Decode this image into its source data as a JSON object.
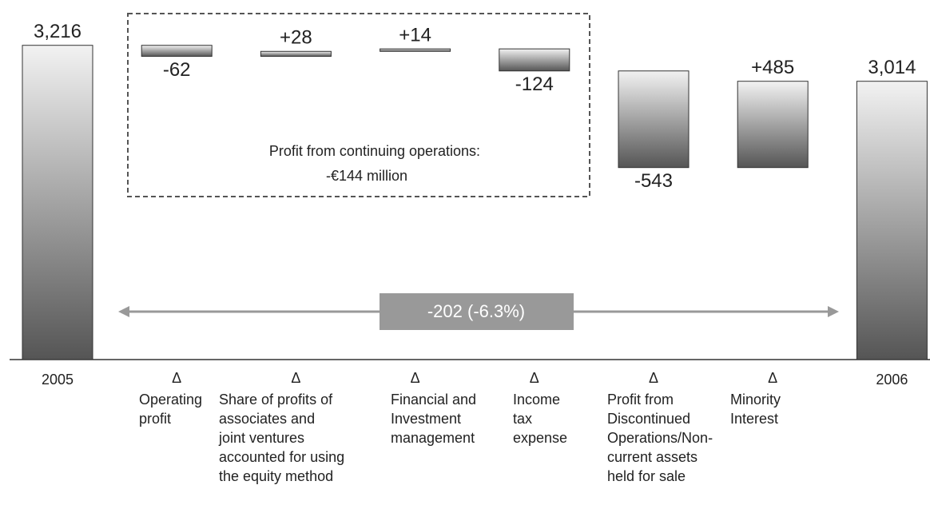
{
  "chart_data": {
    "type": "waterfall",
    "categories": [
      "2005",
      "Operating\nprofit",
      "Share of profits of\nassociates and\njoint ventures\naccounted for using\nthe equity method",
      "Financial and\nInvestment\nmanagement",
      "Income\ntax\nexpense",
      "Profit from\nDiscontinued\nOperations/Non-\ncurrent assets\nheld for sale",
      "Minority\nInterest",
      "2006"
    ],
    "values": [
      3216,
      -62,
      28,
      14,
      -124,
      -543,
      485,
      3014
    ],
    "value_labels": [
      "3,216",
      "-62",
      "+28",
      "+14",
      "-124",
      "-543",
      "+485",
      "3,014"
    ],
    "delta_marker": "Δ",
    "box_annotation": [
      "Profit from continuing operations:",
      "-€144 million"
    ],
    "change_label": "-202 (-6.3%)",
    "ylim": [
      1450,
      3300
    ]
  }
}
